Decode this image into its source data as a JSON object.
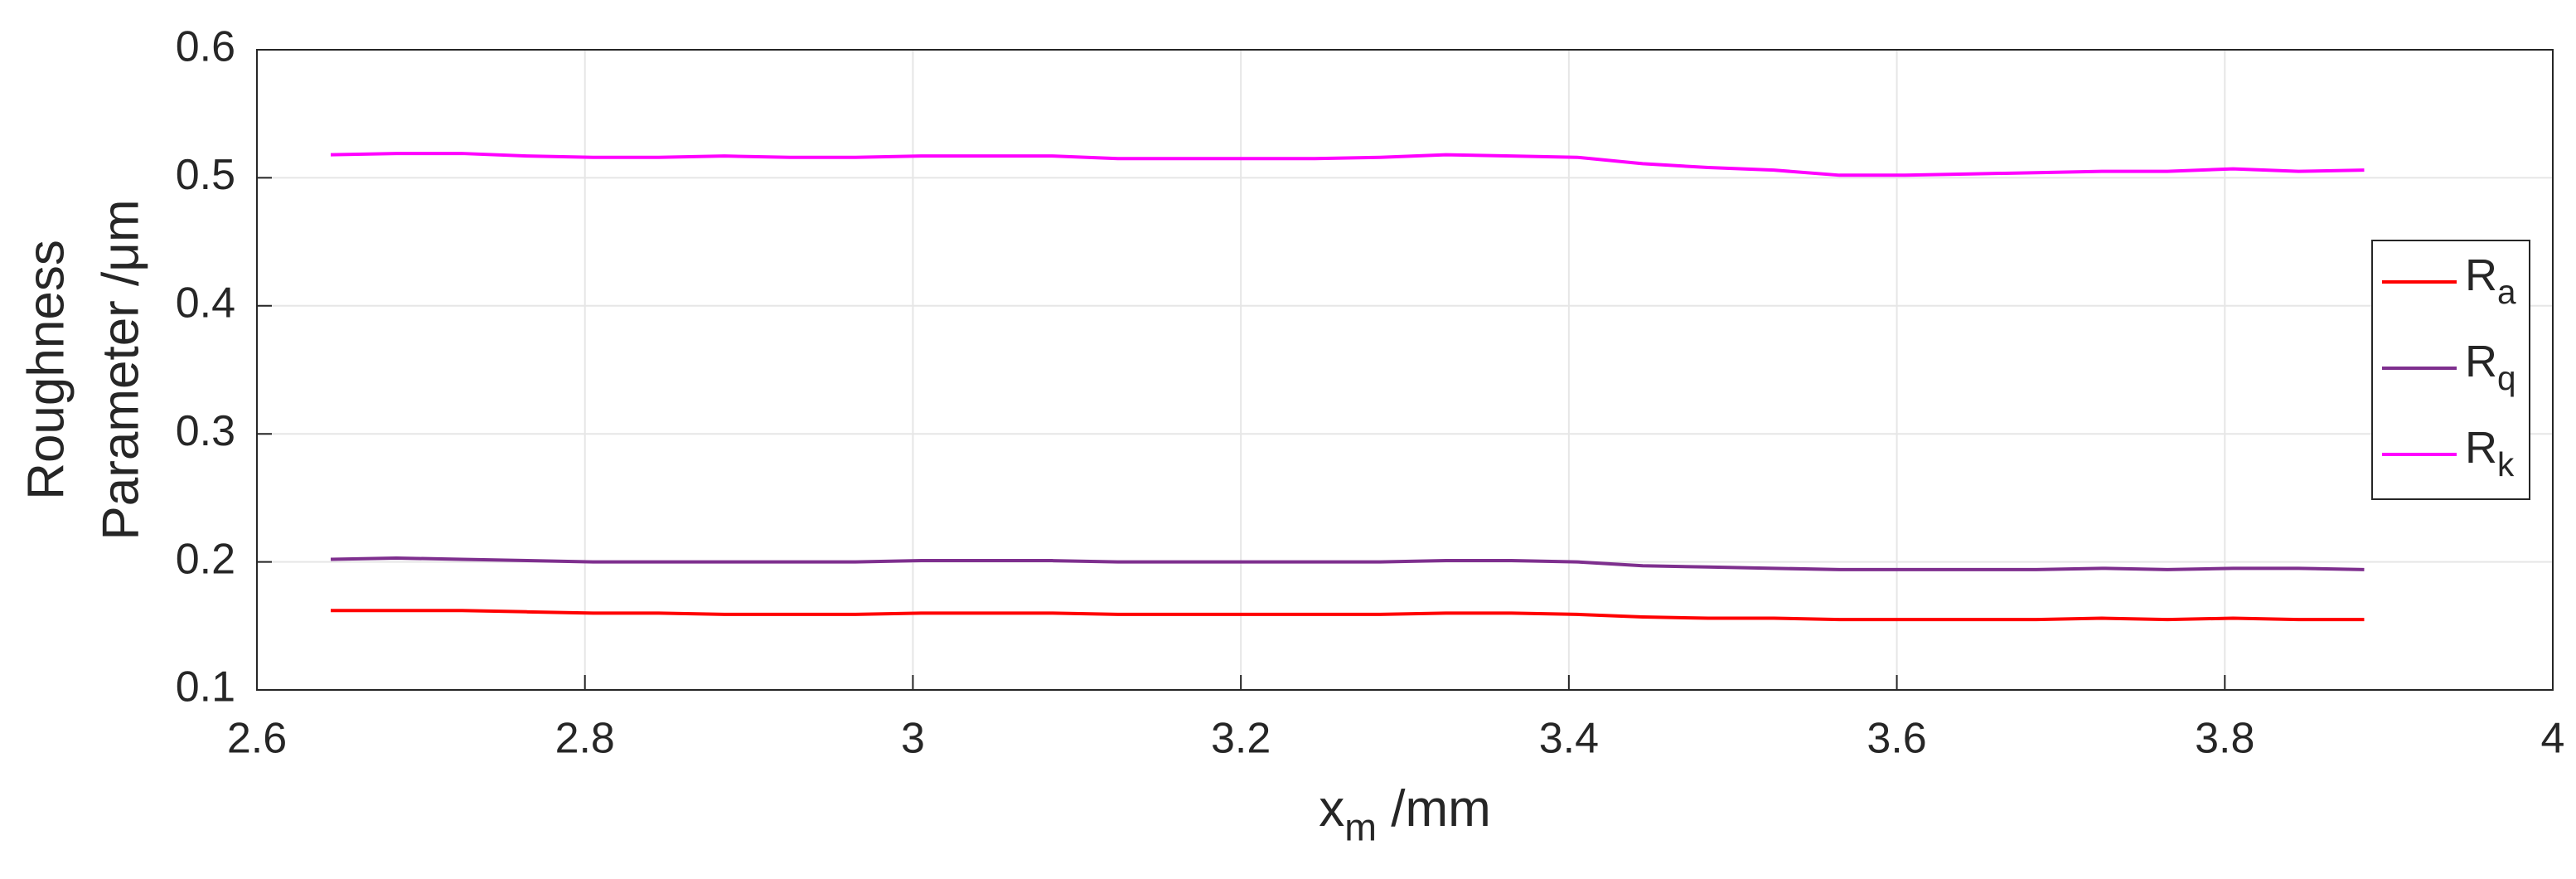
{
  "chart_data": {
    "type": "line",
    "xlabel": "xm /mm",
    "ylabel": [
      "Roughness",
      "Parameter /μm"
    ],
    "x": [
      2.645,
      2.685,
      2.725,
      2.765,
      2.805,
      2.845,
      2.885,
      2.925,
      2.965,
      3.005,
      3.045,
      3.085,
      3.125,
      3.165,
      3.205,
      3.245,
      3.285,
      3.325,
      3.365,
      3.405,
      3.445,
      3.485,
      3.525,
      3.565,
      3.605,
      3.645,
      3.685,
      3.725,
      3.765,
      3.805,
      3.845,
      3.885
    ],
    "series": [
      {
        "name": "Ra",
        "color": "#ff0000",
        "values": [
          0.162,
          0.162,
          0.162,
          0.161,
          0.16,
          0.16,
          0.159,
          0.159,
          0.159,
          0.16,
          0.16,
          0.16,
          0.159,
          0.159,
          0.159,
          0.159,
          0.159,
          0.16,
          0.16,
          0.159,
          0.157,
          0.156,
          0.156,
          0.155,
          0.155,
          0.155,
          0.155,
          0.156,
          0.155,
          0.156,
          0.155,
          0.155
        ]
      },
      {
        "name": "Rq",
        "color": "#7e2f8e",
        "values": [
          0.202,
          0.203,
          0.202,
          0.201,
          0.2,
          0.2,
          0.2,
          0.2,
          0.2,
          0.201,
          0.201,
          0.201,
          0.2,
          0.2,
          0.2,
          0.2,
          0.2,
          0.201,
          0.201,
          0.2,
          0.197,
          0.196,
          0.195,
          0.194,
          0.194,
          0.194,
          0.194,
          0.195,
          0.194,
          0.195,
          0.195,
          0.194
        ]
      },
      {
        "name": "Rk",
        "color": "#ff00ff",
        "values": [
          0.518,
          0.519,
          0.519,
          0.517,
          0.516,
          0.516,
          0.517,
          0.516,
          0.516,
          0.517,
          0.517,
          0.517,
          0.515,
          0.515,
          0.515,
          0.515,
          0.516,
          0.518,
          0.517,
          0.516,
          0.511,
          0.508,
          0.506,
          0.502,
          0.502,
          0.503,
          0.504,
          0.505,
          0.505,
          0.507,
          0.505,
          0.506
        ]
      }
    ],
    "xlim": [
      2.6,
      4
    ],
    "xticks": [
      2.6,
      2.8,
      3,
      3.2,
      3.4,
      3.6,
      3.8,
      4
    ],
    "ylim": [
      0.1,
      0.6
    ],
    "yticks": [
      0.1,
      0.2,
      0.3,
      0.4,
      0.5,
      0.6
    ],
    "grid": true,
    "legend": "right"
  }
}
